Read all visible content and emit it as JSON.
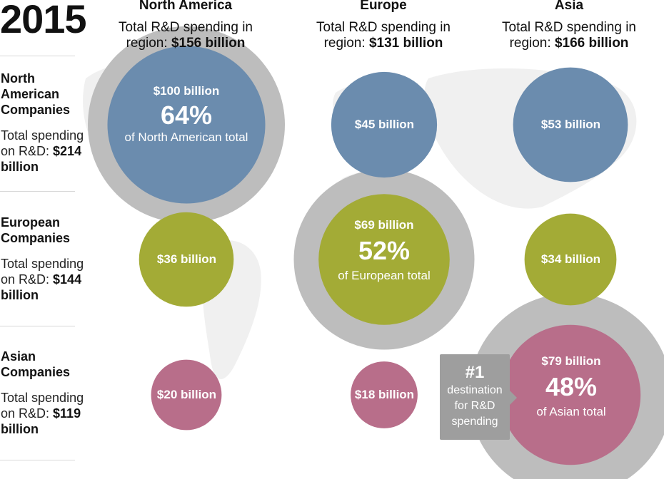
{
  "year": "2015",
  "colors": {
    "north_america": "#6b8cae",
    "europe": "#a3ab36",
    "asia": "#b86e8a",
    "region_total": "#bdbdbd",
    "callout": "#9e9e9e"
  },
  "columns": [
    {
      "region": "North America",
      "sub_text": "Total R&D spending in region: ",
      "sub_value": "$156 billion"
    },
    {
      "region": "Europe",
      "sub_text": "Total R&D spending in region: ",
      "sub_value": "$131 billion"
    },
    {
      "region": "Asia",
      "sub_text": "Total R&D spending in region: ",
      "sub_value": "$166 billion"
    }
  ],
  "rows": [
    {
      "title": "North American Companies",
      "sub_text": "Total spending on R&D: ",
      "sub_value": "$214 billion"
    },
    {
      "title": "European Companies",
      "sub_text": "Total spending on R&D: ",
      "sub_value": "$144 billion"
    },
    {
      "title": "Asian Companies",
      "sub_text": "Total spending on R&D: ",
      "sub_value": "$119 billion"
    }
  ],
  "bubbles": {
    "na_na": {
      "amount": "$100 billion",
      "percent": "64%",
      "percent_label": "of North American total"
    },
    "na_eu": {
      "amount": "$45 billion"
    },
    "na_as": {
      "amount": "$53 billion"
    },
    "eu_na": {
      "amount": "$36 billion"
    },
    "eu_eu": {
      "amount": "$69 billion",
      "percent": "52%",
      "percent_label": "of European total"
    },
    "eu_as": {
      "amount": "$34 billion"
    },
    "as_na": {
      "amount": "$20 billion"
    },
    "as_eu": {
      "amount": "$18 billion"
    },
    "as_as": {
      "amount": "$79 billion",
      "percent": "48%",
      "percent_label": "of Asian total"
    }
  },
  "callout": {
    "number": "#1",
    "label": "destination for R&D spending"
  },
  "chart_data": {
    "type": "bubble-matrix",
    "title": "2015",
    "x_categories": [
      "North America",
      "Europe",
      "Asia"
    ],
    "y_categories": [
      "North American Companies",
      "European Companies",
      "Asian Companies"
    ],
    "region_totals_billion": [
      156,
      131,
      166
    ],
    "company_totals_billion": [
      214,
      144,
      119
    ],
    "values_billion": [
      [
        100,
        45,
        53
      ],
      [
        36,
        69,
        34
      ],
      [
        20,
        18,
        79
      ]
    ],
    "home_share_percent": [
      64,
      52,
      48
    ]
  }
}
